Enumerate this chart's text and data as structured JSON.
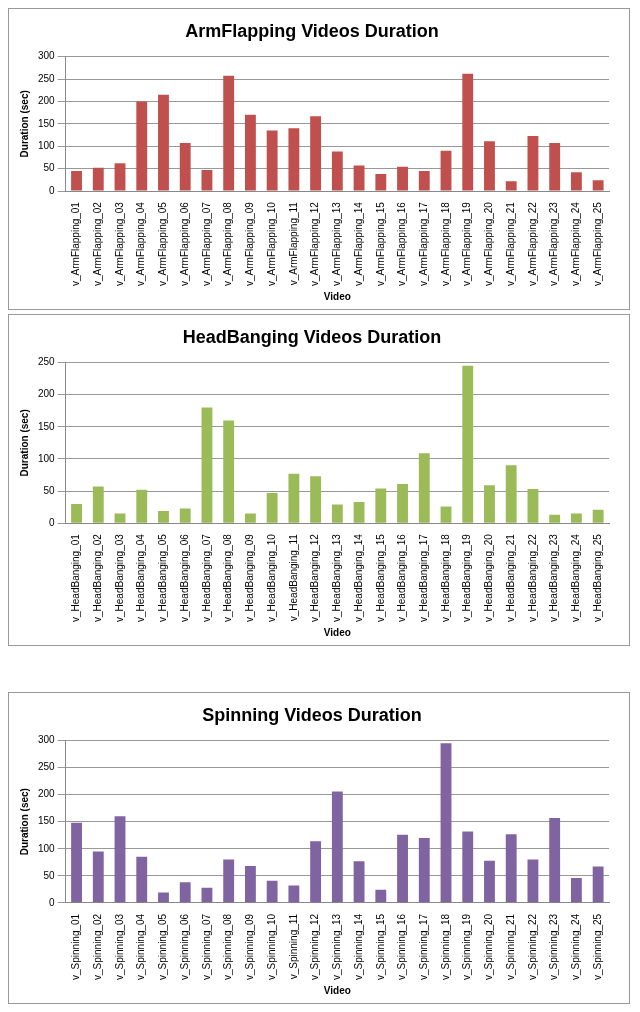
{
  "chart_data": [
    {
      "type": "bar",
      "title": "ArmFlapping Videos Duration",
      "xlabel": "Video",
      "ylabel": "Duration (sec)",
      "categories": [
        "v_ArmFlapping_01",
        "v_ArmFlapping_02",
        "v_ArmFlapping_03",
        "v_ArmFlapping_04",
        "v_ArmFlapping_05",
        "v_ArmFlapping_06",
        "v_ArmFlapping_07",
        "v_ArmFlapping_08",
        "v_ArmFlapping_09",
        "v_ArmFlapping_10",
        "v_ArmFlapping_11",
        "v_ArmFlapping_12",
        "v_ArmFlapping_13",
        "v_ArmFlapping_14",
        "v_ArmFlapping_15",
        "v_ArmFlapping_16",
        "v_ArmFlapping_17",
        "v_ArmFlapping_18",
        "v_ArmFlapping_19",
        "v_ArmFlapping_20",
        "v_ArmFlapping_21",
        "v_ArmFlapping_22",
        "v_ArmFlapping_23",
        "v_ArmFlapping_24",
        "v_ArmFlapping_25"
      ],
      "values": [
        45,
        52,
        62,
        200,
        215,
        107,
        47,
        257,
        170,
        135,
        140,
        167,
        88,
        57,
        38,
        54,
        45,
        90,
        262,
        111,
        22,
        123,
        107,
        42,
        24
      ],
      "color": "#c0504d",
      "ylim": [
        0,
        300
      ],
      "yticks": [
        0,
        50,
        100,
        150,
        200,
        250,
        300
      ],
      "grid": "y"
    },
    {
      "type": "bar",
      "title": "HeadBanging Videos Duration",
      "xlabel": "Video",
      "ylabel": "Duration (sec)",
      "categories": [
        "v_HeadBanging_01",
        "v_HeadBanging_02",
        "v_HeadBanging_03",
        "v_HeadBanging_04",
        "v_HeadBanging_05",
        "v_HeadBanging_06",
        "v_HeadBanging_07",
        "v_HeadBanging_08",
        "v_HeadBanging_09",
        "v_HeadBanging_10",
        "v_HeadBanging_11",
        "v_HeadBanging_12",
        "v_HeadBanging_13",
        "v_HeadBanging_14",
        "v_HeadBanging_15",
        "v_HeadBanging_16",
        "v_HeadBanging_17",
        "v_HeadBanging_18",
        "v_HeadBanging_19",
        "v_HeadBanging_20",
        "v_HeadBanging_21",
        "v_HeadBanging_22",
        "v_HeadBanging_23",
        "v_HeadBanging_24",
        "v_HeadBanging_25"
      ],
      "values": [
        30,
        57,
        15,
        52,
        19,
        23,
        180,
        160,
        15,
        47,
        77,
        73,
        29,
        33,
        54,
        61,
        109,
        26,
        245,
        59,
        90,
        53,
        13,
        15,
        21
      ],
      "color": "#9bbb59",
      "ylim": [
        0,
        250
      ],
      "yticks": [
        0,
        50,
        100,
        150,
        200,
        250
      ],
      "grid": "y"
    },
    {
      "type": "bar",
      "title": "Spinning Videos Duration",
      "xlabel": "Video",
      "ylabel": "Duration (sec)",
      "categories": [
        "v_Spinning_01",
        "v_Spinning_02",
        "v_Spinning_03",
        "v_Spinning_04",
        "v_Spinning_05",
        "v_Spinning_06",
        "v_Spinning_07",
        "v_Spinning_08",
        "v_Spinning_09",
        "v_Spinning_10",
        "v_Spinning_11",
        "v_Spinning_12",
        "v_Spinning_13",
        "v_Spinning_14",
        "v_Spinning_15",
        "v_Spinning_16",
        "v_Spinning_17",
        "v_Spinning_18",
        "v_Spinning_19",
        "v_Spinning_20",
        "v_Spinning_21",
        "v_Spinning_22",
        "v_Spinning_23",
        "v_Spinning_24",
        "v_Spinning_25"
      ],
      "values": [
        148,
        95,
        160,
        85,
        19,
        38,
        28,
        80,
        68,
        41,
        32,
        114,
        206,
        77,
        24,
        126,
        120,
        295,
        132,
        78,
        127,
        80,
        157,
        46,
        67
      ],
      "color": "#8064a2",
      "ylim": [
        0,
        300
      ],
      "yticks": [
        0,
        50,
        100,
        150,
        200,
        250,
        300
      ],
      "grid": "y"
    }
  ]
}
